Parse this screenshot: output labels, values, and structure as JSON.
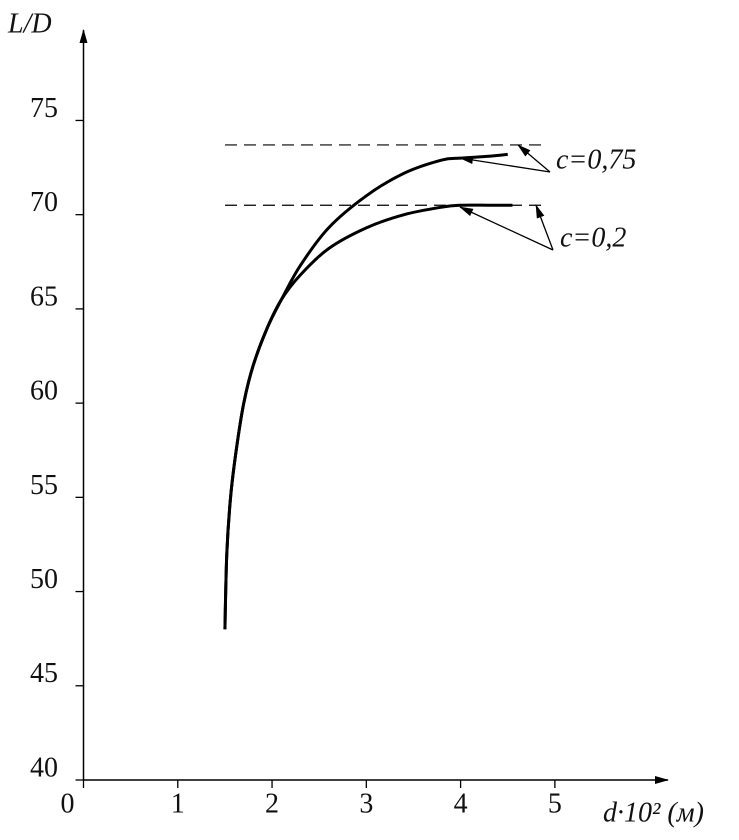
{
  "chart_data": {
    "type": "line",
    "y_label": "L/D",
    "x_label": "d·10² (м)",
    "xlim": [
      0,
      6.2
    ],
    "ylim": [
      40,
      79.8
    ],
    "xticks": [
      0,
      1,
      2,
      3,
      4,
      5
    ],
    "yticks": [
      40,
      45,
      50,
      55,
      60,
      65,
      70,
      75
    ],
    "hlines": [
      73.7,
      70.5
    ],
    "color": "#000000",
    "series": [
      {
        "name": "c=0,75",
        "x": [
          1.5,
          1.52,
          1.56,
          1.62,
          1.7,
          1.8,
          1.95,
          2.1,
          2.3,
          2.6,
          3.0,
          3.4,
          3.8,
          4.0,
          4.3,
          4.5
        ],
        "values": [
          48,
          52,
          55,
          57.5,
          60,
          62,
          64,
          65.5,
          67.3,
          69.3,
          71.0,
          72.2,
          72.9,
          73.0,
          73.1,
          73.2
        ]
      },
      {
        "name": "c=0,2",
        "x": [
          1.5,
          1.52,
          1.56,
          1.62,
          1.7,
          1.8,
          1.95,
          2.1,
          2.3,
          2.6,
          3.0,
          3.4,
          3.8,
          4.0,
          4.3,
          4.55
        ],
        "values": [
          48,
          52,
          55,
          57.5,
          60,
          62,
          64,
          65.5,
          66.8,
          68.2,
          69.3,
          70.0,
          70.4,
          70.5,
          70.5,
          70.5
        ]
      }
    ]
  }
}
